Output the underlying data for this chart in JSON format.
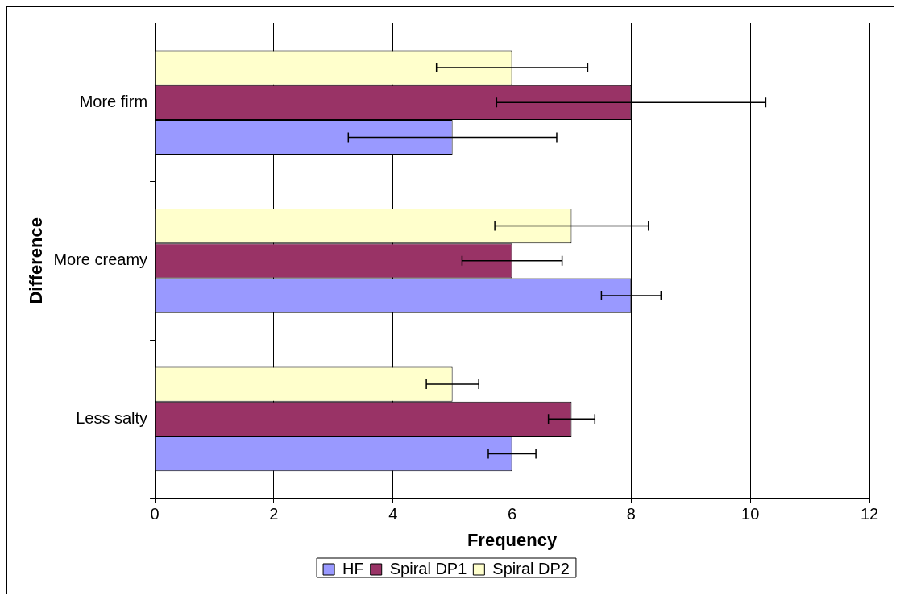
{
  "chart_data": {
    "type": "bar",
    "orientation": "horizontal",
    "xlabel": "Frequency",
    "ylabel": "Difference",
    "categories": [
      "More firm",
      "More creamy",
      "Less salty"
    ],
    "series": [
      {
        "name": "HF",
        "color": "#9999ff",
        "values": [
          5,
          8,
          6
        ],
        "errors": [
          1.75,
          0.5,
          0.4
        ]
      },
      {
        "name": "Spiral DP1",
        "color": "#993366",
        "values": [
          8,
          6,
          7
        ],
        "errors": [
          2.26,
          0.84,
          0.39
        ]
      },
      {
        "name": "Spiral DP2",
        "color": "#ffffcc",
        "values": [
          6,
          7,
          5
        ],
        "errors": [
          1.27,
          1.29,
          0.44
        ]
      }
    ],
    "xlim": [
      0,
      12
    ],
    "xticks": [
      0,
      2,
      4,
      6,
      8,
      10,
      12
    ],
    "grid": "x",
    "legend": "bottom"
  }
}
